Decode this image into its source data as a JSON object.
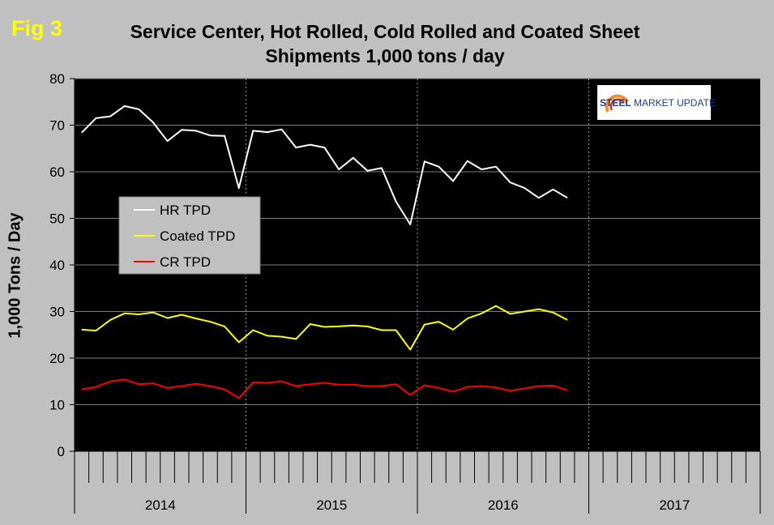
{
  "figure": {
    "label": "Fig 3",
    "title_line1": "Service Center, Hot Rolled, Cold Rolled and Coated Sheet",
    "title_line2": "Shipments 1,000 tons / day"
  },
  "logo": {
    "word1": "STEEL",
    "word2": "MARKET UPDATE"
  },
  "chart_data": {
    "type": "line",
    "title": "Service Center, Hot Rolled, Cold Rolled and Coated Sheet Shipments 1,000 tons / day",
    "xlabel": "",
    "ylabel": "1,000 Tons / Day",
    "ylim": [
      0,
      80
    ],
    "yticks": [
      "0",
      "10",
      "20",
      "30",
      "40",
      "50",
      "60",
      "70",
      "80"
    ],
    "years": [
      "2014",
      "2015",
      "2016",
      "2017"
    ],
    "months_total": 48,
    "grid": true,
    "legend_position": "left",
    "series": [
      {
        "name": "HR TPD",
        "color": "#ffffff",
        "values": [
          68.4,
          71.5,
          71.9,
          74.1,
          73.4,
          70.6,
          66.6,
          69.0,
          68.8,
          67.8,
          67.7,
          56.5,
          68.8,
          68.5,
          69.1,
          65.2,
          65.8,
          65.2,
          60.5,
          63.0,
          60.2,
          60.8,
          53.6,
          48.7,
          62.2,
          61.1,
          58.0,
          62.3,
          60.5,
          61.1,
          57.7,
          56.5,
          54.4,
          56.2,
          54.4
        ]
      },
      {
        "name": "Coated TPD",
        "color": "#ffff00",
        "values": [
          26.1,
          25.9,
          28.2,
          29.6,
          29.4,
          29.8,
          28.6,
          29.3,
          28.5,
          27.8,
          26.8,
          23.4,
          26.0,
          24.8,
          24.6,
          24.1,
          27.3,
          26.7,
          26.8,
          27.0,
          26.8,
          26.0,
          26.0,
          21.8,
          27.2,
          27.8,
          26.1,
          28.5,
          29.6,
          31.2,
          29.5,
          30.0,
          30.5,
          29.8,
          28.2
        ]
      },
      {
        "name": "CR TPD",
        "color": "#ff0000",
        "values": [
          13.3,
          13.8,
          15.0,
          15.4,
          14.4,
          14.6,
          13.6,
          14.0,
          14.5,
          14.0,
          13.3,
          11.4,
          14.8,
          14.7,
          15.0,
          14.0,
          14.4,
          14.7,
          14.3,
          14.3,
          14.0,
          14.0,
          14.4,
          12.1,
          14.2,
          13.6,
          12.8,
          13.8,
          14.0,
          13.7,
          13.0,
          13.5,
          14.0,
          14.1,
          13.1
        ]
      }
    ]
  }
}
